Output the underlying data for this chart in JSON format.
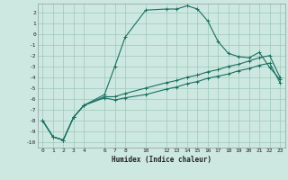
{
  "xlabel": "Humidex (Indice chaleur)",
  "bg_color": "#cce8e0",
  "grid_color": "#a0c8b8",
  "line_color": "#1a7060",
  "xlim": [
    -0.5,
    23.5
  ],
  "ylim": [
    -10.5,
    2.8
  ],
  "xticks": [
    0,
    1,
    2,
    3,
    4,
    6,
    7,
    8,
    10,
    12,
    13,
    14,
    15,
    16,
    17,
    18,
    19,
    20,
    21,
    22,
    23
  ],
  "yticks": [
    2,
    1,
    0,
    -1,
    -2,
    -3,
    -4,
    -5,
    -6,
    -7,
    -8,
    -9,
    -10
  ],
  "line1_x": [
    0,
    1,
    2,
    3,
    4,
    6,
    7,
    8,
    10,
    12,
    13,
    14,
    15,
    16,
    17,
    18,
    19,
    20,
    21,
    22,
    23
  ],
  "line1_y": [
    -8.0,
    -9.5,
    -9.8,
    -7.7,
    -6.6,
    -5.6,
    -3.0,
    -0.3,
    2.2,
    2.3,
    2.3,
    2.6,
    2.3,
    1.2,
    -0.7,
    -1.8,
    -2.1,
    -2.2,
    -1.7,
    -3.1,
    -4.2
  ],
  "line2_x": [
    0,
    1,
    2,
    3,
    4,
    6,
    7,
    8,
    10,
    12,
    13,
    14,
    15,
    16,
    17,
    18,
    19,
    20,
    21,
    22,
    23
  ],
  "line2_y": [
    -8.0,
    -9.5,
    -9.8,
    -7.7,
    -6.6,
    -5.8,
    -5.8,
    -5.5,
    -5.0,
    -4.5,
    -4.3,
    -4.0,
    -3.8,
    -3.5,
    -3.3,
    -3.0,
    -2.8,
    -2.5,
    -2.2,
    -2.0,
    -4.0
  ],
  "line3_x": [
    0,
    1,
    2,
    3,
    4,
    6,
    7,
    8,
    10,
    12,
    13,
    14,
    15,
    16,
    17,
    18,
    19,
    20,
    21,
    22,
    23
  ],
  "line3_y": [
    -8.0,
    -9.5,
    -9.8,
    -7.7,
    -6.6,
    -5.9,
    -6.1,
    -5.9,
    -5.6,
    -5.1,
    -4.9,
    -4.6,
    -4.4,
    -4.1,
    -3.9,
    -3.7,
    -3.4,
    -3.2,
    -2.9,
    -2.7,
    -4.5
  ]
}
